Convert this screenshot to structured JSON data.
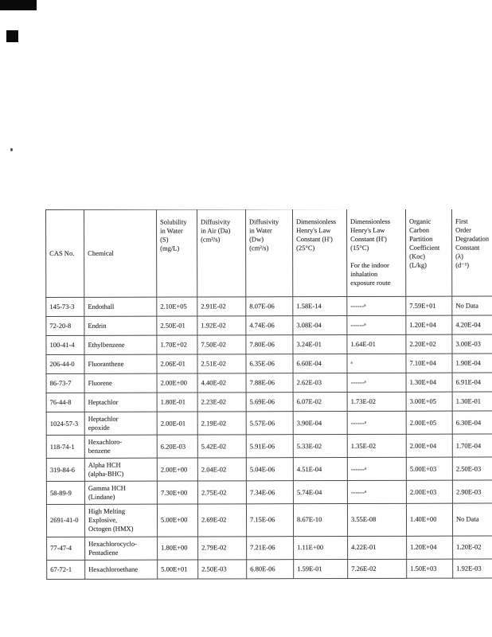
{
  "colors": {
    "ink": "#2f2f2f",
    "line": "#4a4a4a",
    "page_bg": "#ffffff"
  },
  "document": {
    "table": {
      "column_ids": [
        "cas",
        "chemical",
        "solubility",
        "diffusivity-air",
        "diffusivity-water",
        "henry-25c",
        "henry-15c",
        "koc",
        "lambda"
      ],
      "headers": [
        "CAS No.",
        "Chemical",
        "Solubility\nin Water\n(S)\n(mg/L)",
        "Diffusivity\nin Air (Da)\n(cm²/s)",
        "Diffusivity\nin Water\n(Dw)\n(cm²/s)",
        "Dimensionless\nHenry's Law\nConstant (H')\n(25°C)",
        "Dimensionless\nHenry's Law\nConstant (H')\n(15°C)\n\nFor the indoor\ninhalation\nexposure route",
        "Organic\nCarbon\nPartition\nCoefficient\n(Koc)\n(L/kg)",
        "First\nOrder\nDegradation\nConstant\n(λ)\n(d⁻¹)"
      ],
      "rows": [
        [
          "145-73-3",
          "Endothall",
          "2.10E+05",
          "2.91E-02",
          "8.07E-06",
          "1.58E-14",
          "------ᵃ",
          "7.59E+01",
          "No Data"
        ],
        [
          "72-20-8",
          "Endrin",
          "2.50E-01",
          "1.92E-02",
          "4.74E-06",
          "3.08E-04",
          "------ᵃ",
          "1.20E+04",
          "4.20E-04"
        ],
        [
          "100-41-4",
          "Ethylbenzene",
          "1.70E+02",
          "7.50E-02",
          "7.80E-06",
          "3.24E-01",
          "1.64E-01",
          "2.20E+02",
          "3.00E-03"
        ],
        [
          "206-44-0",
          "Fluoranthene",
          "2.06E-01",
          "2.51E-02",
          "6.35E-06",
          "6.60E-04",
          "ᵃ",
          "7.10E+04",
          "1.90E-04"
        ],
        [
          "86-73-7",
          "Fluorene",
          "2.00E+00",
          "4.40E-02",
          "7.88E-06",
          "2.62E-03",
          "------ᵃ",
          "1.30E+04",
          "6.91E-04"
        ],
        [
          "76-44-8",
          "Heptachlor",
          "1.80E-01",
          "2.23E-02",
          "5.69E-06",
          "6.07E-02",
          "1.73E-02",
          "3.00E+05",
          "1.30E-01"
        ],
        [
          "1024-57-3",
          "Heptachlor\nepoxide",
          "2.00E-01",
          "2.19E-02",
          "5.57E-06",
          "3.90E-04",
          "------ᵃ",
          "2.00E+05",
          "6.30E-04"
        ],
        [
          "118-74-1",
          "Hexachloro-\nbenzene",
          "6.20E-03",
          "5.42E-02",
          "5.91E-06",
          "5.33E-02",
          "1.35E-02",
          "2.00E+04",
          "1.70E-04"
        ],
        [
          "319-84-6",
          "Alpha HCH\n(alpha-BHC)",
          "2.00E+00",
          "2.04E-02",
          "5.04E-06",
          "4.51E-04",
          "------ᵃ",
          "5.00E+03",
          "2.50E-03"
        ],
        [
          "58-89-9",
          "Gamma HCH\n(Lindane)",
          "7.30E+00",
          "2.75E-02",
          "7.34E-06",
          "5.74E-04",
          "------ᵃ",
          "2.00E+03",
          "2.90E-03"
        ],
        [
          "2691-41-0",
          "High Melting\nExplosive,\nOctogen (HMX)",
          "5.00E+00",
          "2.69E-02",
          "7.15E-06",
          "8.67E-10",
          "3.55E-08",
          "1.40E+00",
          "No Data"
        ],
        [
          "77-47-4",
          "Hexachlorocyclo-\nPentadiene",
          "1.80E+00",
          "2.79E-02",
          "7.21E-06",
          "1.11E+00",
          "4.22E-01",
          "1.20E+04",
          "1.20E-02"
        ],
        [
          "67-72-1",
          "Hexachloroethane",
          "5.00E+01",
          "2.50E-03",
          "6.80E-06",
          "1.59E-01",
          "7.26E-02",
          "1.50E+03",
          "1.92E-03"
        ]
      ]
    }
  }
}
